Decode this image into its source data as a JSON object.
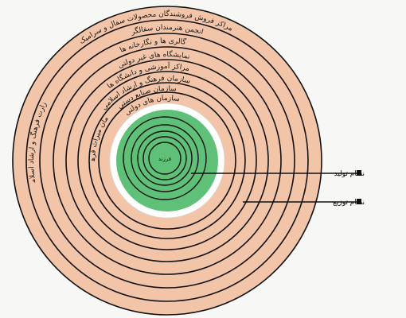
{
  "diagram": {
    "center_label": "فرزند",
    "outer_ring_labels": [
      "مراکز فروش فروشندگان محصولات سفال و سرامیک",
      "انجمن هنرمندان سفالگر",
      "گالری ها و نگارخانه ها",
      "نمایشگاه های غیر دولتی",
      "مراکز آموزشی و دانشگاه ها",
      "سازمان فرهنگ و ارشاد اسلامی",
      "سازمان صنایع دستی",
      "سازمان های دولتی",
      "وزارت فرهنگ و ارشاد اسلامی",
      "سازمان میراث فرهنگی"
    ],
    "legend": [
      {
        "label": "نظام تولید",
        "marker": "square"
      },
      {
        "label": "نظام توزیع",
        "marker": "square"
      }
    ],
    "colors": {
      "outer_fill": "#f2c4a8",
      "inner_fill": "#5fc077",
      "gap_fill": "#ffffff",
      "stroke": "#111111",
      "background": "#f7f7f5"
    }
  }
}
